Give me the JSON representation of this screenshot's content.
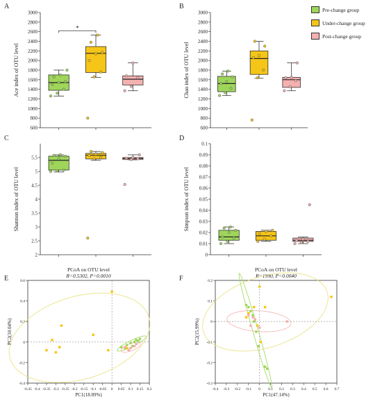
{
  "colors": {
    "pre": "#9fd65a",
    "under": "#f5c518",
    "post": "#f5b0b0",
    "axis": "#333333",
    "ellipse": "#e8e07a"
  },
  "legend": [
    {
      "label": "Pre-change group",
      "color": "#9fd65a"
    },
    {
      "label": "Under-change group",
      "color": "#f5c518"
    },
    {
      "label": "Post-change group",
      "color": "#f5b0b0"
    }
  ],
  "chart_data": [
    {
      "panel": "A",
      "type": "box",
      "ylabel": "Ace index of OTU level",
      "ylim": [
        600,
        3000
      ],
      "yticks": [
        600,
        800,
        1000,
        1200,
        1400,
        1600,
        1800,
        2000,
        2200,
        2400,
        2600,
        2800,
        3000
      ],
      "significance": "*",
      "groups": [
        {
          "name": "Pre-change group",
          "q1": 1380,
          "median": 1540,
          "q3": 1700,
          "whisker": [
            1260,
            1800
          ],
          "points": [
            1260,
            1320,
            1400,
            1500,
            1540,
            1560,
            1660,
            1700,
            1800
          ]
        },
        {
          "name": "Under-change group",
          "q1": 1750,
          "median": 2150,
          "q3": 2290,
          "whisker": [
            1650,
            2530
          ],
          "points": [
            800,
            1660,
            1760,
            2000,
            2140,
            2170,
            2380,
            2530
          ]
        },
        {
          "name": "Post-change group",
          "q1": 1490,
          "median": 1610,
          "q3": 1680,
          "whisker": [
            1370,
            1950
          ],
          "points": [
            1370,
            1460,
            1640,
            1680,
            1950
          ]
        }
      ]
    },
    {
      "panel": "B",
      "type": "box",
      "ylabel": "Chao index of OTU level",
      "ylim": [
        600,
        3000
      ],
      "yticks": [
        600,
        800,
        1000,
        1200,
        1400,
        1600,
        1800,
        2000,
        2200,
        2400,
        2600,
        2800,
        3000
      ],
      "groups": [
        {
          "name": "Pre-change group",
          "q1": 1350,
          "median": 1520,
          "q3": 1670,
          "whisker": [
            1270,
            1780
          ],
          "points": [
            1270,
            1330,
            1420,
            1520,
            1560,
            1660,
            1720,
            1780
          ]
        },
        {
          "name": "Under-change group",
          "q1": 1710,
          "median": 2040,
          "q3": 2200,
          "whisker": [
            1630,
            2400
          ],
          "points": [
            760,
            1640,
            1800,
            2060,
            2100,
            2300,
            2400
          ]
        },
        {
          "name": "Post-change group",
          "q1": 1440,
          "median": 1600,
          "q3": 1650,
          "whisker": [
            1370,
            1950
          ],
          "points": [
            1370,
            1450,
            1580,
            1640,
            1650,
            1950
          ]
        }
      ]
    },
    {
      "panel": "C",
      "type": "box",
      "ylabel": "Shannon index of OTU level",
      "ylim": [
        2,
        6
      ],
      "yticks": [
        2,
        2.5,
        3,
        3.5,
        4,
        4.5,
        5,
        5.5
      ],
      "groups": [
        {
          "name": "Pre-change group",
          "q1": 5.05,
          "median": 5.4,
          "q3": 5.55,
          "whisker": [
            4.98,
            5.6
          ],
          "points": [
            5.0,
            5.02,
            5.05,
            5.3,
            5.45,
            5.55,
            5.58,
            5.6
          ]
        },
        {
          "name": "Under-change group",
          "q1": 5.45,
          "median": 5.58,
          "q3": 5.65,
          "whisker": [
            5.4,
            5.72
          ],
          "points": [
            2.6,
            5.45,
            5.5,
            5.58,
            5.62,
            5.68,
            5.72
          ]
        },
        {
          "name": "Post-change group",
          "q1": 5.43,
          "median": 5.47,
          "q3": 5.5,
          "whisker": [
            5.42,
            5.6
          ],
          "points": [
            4.53,
            5.43,
            5.46,
            5.48,
            5.5,
            5.6
          ]
        }
      ]
    },
    {
      "panel": "D",
      "type": "box",
      "ylabel": "Simpson index of OTU level",
      "ylim": [
        0,
        0.1
      ],
      "yticks": [
        0,
        0.01,
        0.02,
        0.03,
        0.04,
        0.05,
        0.06,
        0.07,
        0.08,
        0.09,
        0.1
      ],
      "groups": [
        {
          "name": "Pre-change group",
          "q1": 0.013,
          "median": 0.016,
          "q3": 0.022,
          "whisker": [
            0.01,
            0.025
          ],
          "points": [
            0.01,
            0.012,
            0.015,
            0.016,
            0.02,
            0.022,
            0.024,
            0.025
          ]
        },
        {
          "name": "Under-change group",
          "q1": 0.013,
          "median": 0.017,
          "q3": 0.021,
          "whisker": [
            0.012,
            0.022
          ],
          "points": [
            0.012,
            0.014,
            0.017,
            0.019,
            0.021,
            0.022
          ]
        },
        {
          "name": "Post-change group",
          "q1": 0.012,
          "median": 0.013,
          "q3": 0.015,
          "whisker": [
            0.01,
            0.016
          ],
          "points": [
            0.01,
            0.011,
            0.012,
            0.013,
            0.014,
            0.045
          ]
        }
      ]
    },
    {
      "panel": "E",
      "type": "scatter",
      "title": "PCoA on OTU level",
      "subtitle": "R=0.5302, P=0.0010",
      "xlabel": "PC1(18.89%)",
      "ylabel": "PC2(10.04%)",
      "xlim": [
        -0.45,
        0.2
      ],
      "ylim": [
        -0.4,
        0.6
      ],
      "xticks": [
        -0.45,
        -0.4,
        -0.35,
        -0.3,
        -0.25,
        -0.2,
        -0.15,
        -0.1,
        -0.05,
        0,
        0.05,
        0.1,
        0.15,
        0.2
      ],
      "yticks": [
        -0.4,
        -0.2,
        0,
        0.2,
        0.4,
        0.6
      ],
      "series": [
        {
          "name": "Pre-change group",
          "points": [
            [
              0.05,
              -0.05
            ],
            [
              0.07,
              -0.06
            ],
            [
              0.08,
              -0.03
            ],
            [
              0.1,
              -0.01
            ],
            [
              0.11,
              -0.04
            ],
            [
              0.12,
              0.0
            ],
            [
              0.13,
              0.02
            ],
            [
              0.14,
              0.01
            ],
            [
              0.15,
              0.03
            ]
          ]
        },
        {
          "name": "Under-change group",
          "points": [
            [
              0.0,
              0.49
            ],
            [
              -0.35,
              -0.08
            ],
            [
              -0.32,
              0.02
            ],
            [
              -0.3,
              -0.1
            ],
            [
              -0.28,
              -0.05
            ],
            [
              -0.27,
              0.16
            ],
            [
              -0.1,
              0.07
            ],
            [
              -0.02,
              -0.08
            ],
            [
              0.08,
              -0.06
            ]
          ]
        },
        {
          "name": "Post-change group",
          "points": [
            [
              0.07,
              -0.05
            ],
            [
              0.09,
              -0.08
            ],
            [
              0.1,
              -0.06
            ],
            [
              0.12,
              -0.04
            ],
            [
              0.13,
              -0.02
            ]
          ]
        }
      ]
    },
    {
      "panel": "F",
      "type": "scatter",
      "title": "PCoA on OTU level",
      "subtitle": "R=1990, P=0.0040",
      "xlabel": "PC1(47.14%)",
      "ylabel": "PC2(15.99%)",
      "xlim": [
        -0.4,
        0.7
      ],
      "ylim": [
        -0.3,
        0.2
      ],
      "xticks": [
        -0.4,
        -0.3,
        -0.2,
        -0.1,
        0,
        0.1,
        0.2,
        0.3,
        0.4,
        0.5,
        0.6,
        0.7
      ],
      "yticks": [
        -0.3,
        -0.2,
        -0.1,
        0,
        0.1,
        0.2
      ],
      "series": [
        {
          "name": "Pre-change group",
          "points": [
            [
              -0.1,
              0.07
            ],
            [
              -0.08,
              0.05
            ],
            [
              -0.06,
              0.03
            ],
            [
              -0.05,
              0.0
            ],
            [
              -0.03,
              -0.05
            ],
            [
              -0.01,
              -0.12
            ],
            [
              0.05,
              -0.22
            ],
            [
              0.07,
              -0.23
            ],
            [
              -0.12,
              0.08
            ]
          ]
        },
        {
          "name": "Under-change group",
          "points": [
            [
              0.0,
              0.17
            ],
            [
              -0.1,
              0.04
            ],
            [
              -0.05,
              0.07
            ],
            [
              0.05,
              0.07
            ],
            [
              -0.02,
              -0.02
            ],
            [
              0.01,
              -0.1
            ],
            [
              0.65,
              0.12
            ],
            [
              -0.12,
              0.02
            ]
          ]
        },
        {
          "name": "Post-change group",
          "points": [
            [
              -0.1,
              0.03
            ],
            [
              -0.06,
              0.02
            ],
            [
              -0.04,
              0.01
            ],
            [
              -0.08,
              -0.02
            ],
            [
              0.25,
              0.0
            ],
            [
              0.0,
              -0.03
            ]
          ]
        }
      ]
    }
  ],
  "labels": {
    "a": "A",
    "b": "B",
    "c": "C",
    "d": "D",
    "e": "E",
    "f": "F"
  }
}
